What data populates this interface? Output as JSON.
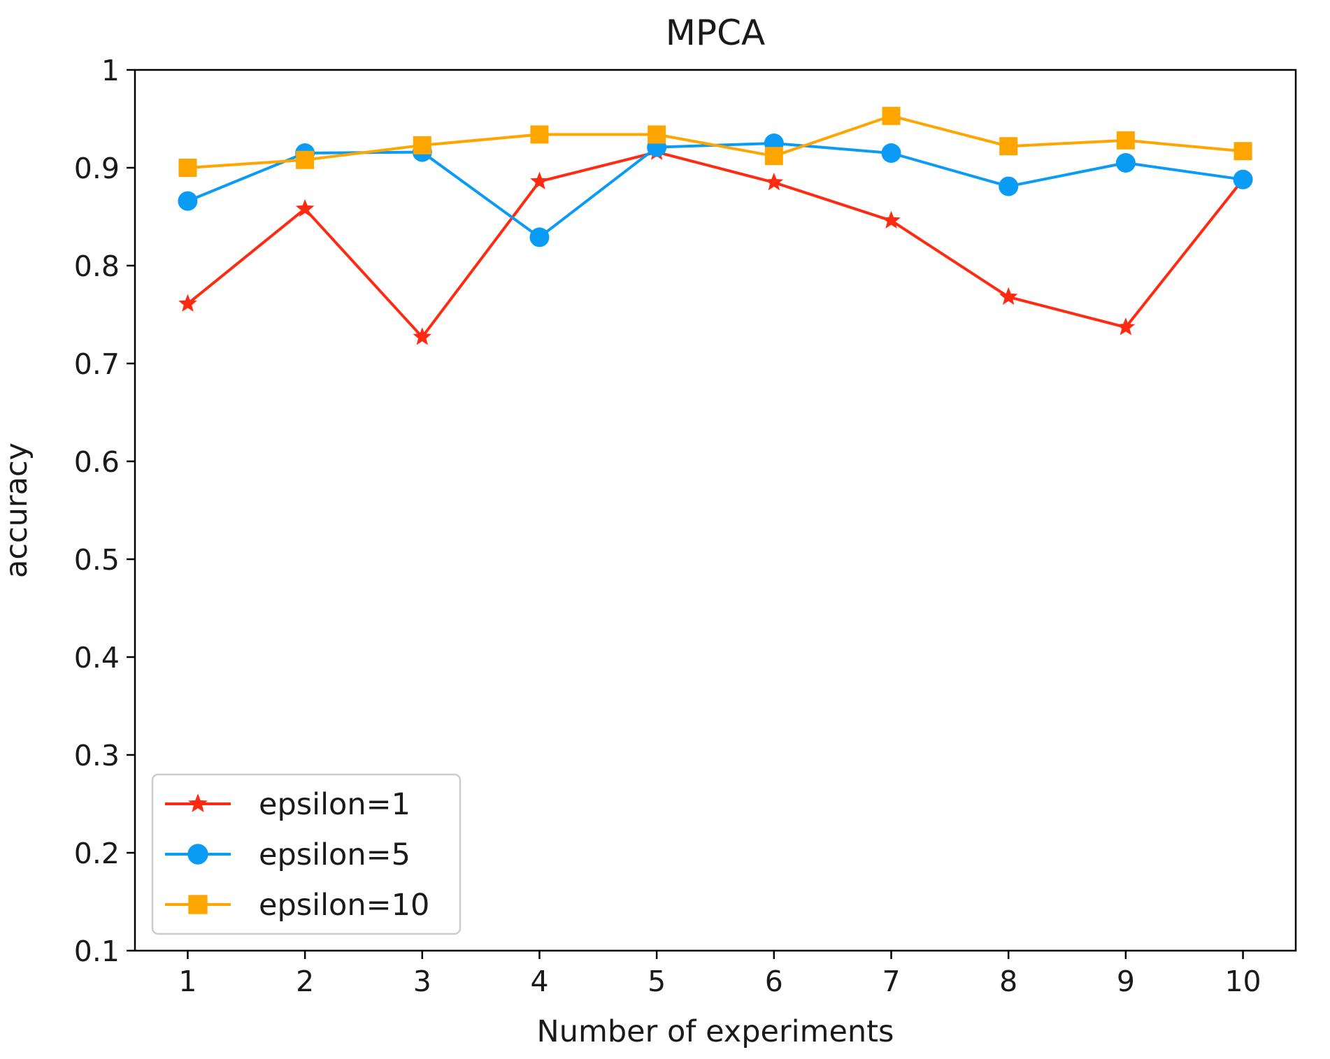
{
  "chart_data": {
    "type": "line",
    "title": "MPCA",
    "xlabel": "Number of experiments",
    "ylabel": "accuracy",
    "x": [
      1,
      2,
      3,
      4,
      5,
      6,
      7,
      8,
      9,
      10
    ],
    "x_tick_labels": [
      "1",
      "2",
      "3",
      "4",
      "5",
      "6",
      "7",
      "8",
      "9",
      "10"
    ],
    "y_ticks": [
      0.1,
      0.2,
      0.3,
      0.4,
      0.5,
      0.6,
      0.7,
      0.8,
      0.9,
      1.0
    ],
    "y_tick_labels": [
      "0.1",
      "0.2",
      "0.3",
      "0.4",
      "0.5",
      "0.6",
      "0.7",
      "0.8",
      "0.9",
      "1"
    ],
    "xlim": [
      0.55,
      10.45
    ],
    "ylim": [
      0.1,
      1.0
    ],
    "grid": false,
    "legend_position": "lower-left",
    "series": [
      {
        "name": "epsilon=1",
        "label": "epsilon=1",
        "color": "#ff2a12",
        "marker": "star",
        "values": [
          0.761,
          0.858,
          0.727,
          0.886,
          0.916,
          0.885,
          0.846,
          0.768,
          0.737,
          0.888
        ]
      },
      {
        "name": "epsilon=5",
        "label": "epsilon=5",
        "color": "#0a9cf5",
        "marker": "circle",
        "values": [
          0.866,
          0.915,
          0.916,
          0.829,
          0.921,
          0.925,
          0.915,
          0.881,
          0.905,
          0.888
        ]
      },
      {
        "name": "epsilon=10",
        "label": "epsilon=10",
        "color": "#ffa500",
        "marker": "square",
        "values": [
          0.9,
          0.908,
          0.923,
          0.934,
          0.934,
          0.912,
          0.953,
          0.922,
          0.928,
          0.917
        ]
      }
    ]
  }
}
